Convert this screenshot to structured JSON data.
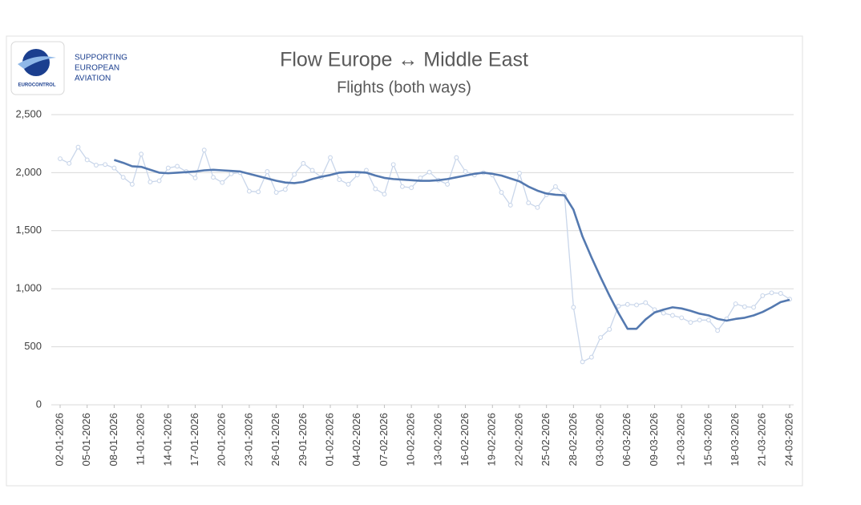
{
  "logo": {
    "tagline": [
      "SUPPORTING",
      "EUROPEAN",
      "AVIATION"
    ],
    "brand": "EUROCONTROL"
  },
  "chart_data": {
    "type": "line",
    "title": "Flow Europe ↔ Middle East",
    "subtitle": "Flights (both ways)",
    "categories": [
      "02-01-2026",
      null,
      null,
      "05-01-2026",
      null,
      null,
      "08-01-2026",
      null,
      null,
      "11-01-2026",
      null,
      null,
      "14-01-2026",
      null,
      null,
      "17-01-2026",
      null,
      null,
      "20-01-2026",
      null,
      null,
      "23-01-2026",
      null,
      null,
      "26-01-2026",
      null,
      null,
      "29-01-2026",
      null,
      null,
      "01-02-2026",
      null,
      null,
      "04-02-2026",
      null,
      null,
      "07-02-2026",
      null,
      null,
      "10-02-2026",
      null,
      null,
      "13-02-2026",
      null,
      null,
      "16-02-2026",
      null,
      null,
      "19-02-2026",
      null,
      null,
      "22-02-2026",
      null,
      null,
      "25-02-2026",
      null,
      null,
      "28-02-2026",
      null,
      null,
      "03-03-2026",
      null,
      null,
      "06-03-2026",
      null,
      null,
      "09-03-2026",
      null,
      null,
      "12-03-2026",
      null,
      null,
      "15-03-2026",
      null,
      null,
      "18-03-2026",
      null,
      null,
      "21-03-2026",
      null,
      null,
      "24-03-2026"
    ],
    "series": [
      {
        "color": "#c9d6ea",
        "markers": true,
        "values": [
          2120,
          2080,
          2220,
          2110,
          2065,
          2070,
          2040,
          1960,
          1900,
          2160,
          1920,
          1930,
          2040,
          2055,
          2010,
          1955,
          2195,
          1960,
          1915,
          1990,
          2000,
          1840,
          1835,
          2010,
          1830,
          1855,
          1985,
          2080,
          2020,
          1960,
          2130,
          1940,
          1900,
          1980,
          2020,
          1860,
          1815,
          2070,
          1880,
          1870,
          1955,
          2005,
          1935,
          1900,
          2130,
          2010,
          1980,
          2000,
          1980,
          1830,
          1720,
          1995,
          1740,
          1700,
          1810,
          1880,
          1810,
          840,
          370,
          410,
          580,
          650,
          850,
          865,
          860,
          880,
          820,
          790,
          770,
          750,
          710,
          730,
          730,
          640,
          740,
          870,
          845,
          840,
          940,
          965,
          960,
          910
        ]
      },
      {
        "color": "#5479b0",
        "markers": false,
        "values": [
          null,
          null,
          null,
          null,
          null,
          null,
          2110,
          2085,
          2055,
          2050,
          2025,
          2000,
          1995,
          2000,
          2005,
          2010,
          2020,
          2025,
          2020,
          2015,
          2010,
          1990,
          1970,
          1950,
          1930,
          1915,
          1910,
          1920,
          1945,
          1965,
          1980,
          2000,
          2005,
          2005,
          2000,
          1975,
          1955,
          1945,
          1940,
          1935,
          1930,
          1930,
          1935,
          1945,
          1960,
          1975,
          1990,
          2000,
          1990,
          1975,
          1950,
          1925,
          1880,
          1845,
          1820,
          1810,
          1805,
          1680,
          1450,
          1270,
          1100,
          940,
          790,
          655,
          655,
          735,
          795,
          820,
          840,
          830,
          810,
          785,
          770,
          740,
          725,
          740,
          750,
          770,
          800,
          840,
          885,
          905
        ]
      }
    ],
    "ylim": [
      0,
      2500
    ],
    "yticks": [
      0,
      500,
      {
        "value": 1000,
        "label": "1,000"
      },
      {
        "value": 1500,
        "label": "1,500"
      },
      {
        "value": 2000,
        "label": "2,000"
      },
      {
        "value": 2500,
        "label": "2,500"
      }
    ],
    "grid": true
  }
}
